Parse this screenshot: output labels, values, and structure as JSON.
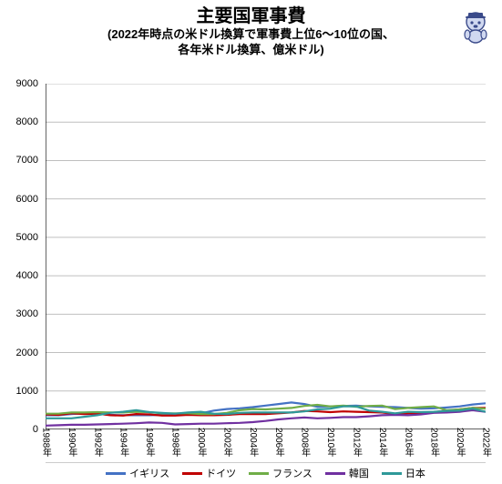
{
  "chart": {
    "type": "line",
    "title": "主要国軍事費",
    "subtitle_line1": "(2022年時点の米ドル換算で軍事費上位6～10位の国、",
    "subtitle_line2": "各年米ドル換算、億米ドル)",
    "title_fontsize": 20,
    "subtitle_fontsize": 13,
    "background_color": "#ffffff",
    "grid_color": "#bfbfbf",
    "axis_color": "#000000",
    "tick_fontsize": 11,
    "ylim": [
      0,
      9000
    ],
    "ytick_step": 1000,
    "yticks": [
      0,
      1000,
      2000,
      3000,
      4000,
      5000,
      6000,
      7000,
      8000,
      9000
    ],
    "xlabels": [
      "1988年",
      "1990年",
      "1992年",
      "1994年",
      "1996年",
      "1998年",
      "2000年",
      "2002年",
      "2004年",
      "2006年",
      "2008年",
      "2010年",
      "2012年",
      "2014年",
      "2016年",
      "2018年",
      "2020年",
      "2022年"
    ],
    "x_count": 35,
    "line_width": 2.2,
    "series": [
      {
        "name": "イギリス",
        "color": "#4472c4",
        "values": [
          370,
          370,
          400,
          420,
          410,
          380,
          370,
          370,
          370,
          380,
          380,
          400,
          420,
          490,
          530,
          550,
          580,
          620,
          660,
          700,
          660,
          590,
          600,
          610,
          620,
          600,
          590,
          580,
          560,
          540,
          550,
          570,
          600,
          650,
          680
        ]
      },
      {
        "name": "ドイツ",
        "color": "#c00000",
        "values": [
          390,
          380,
          420,
          400,
          410,
          370,
          360,
          400,
          390,
          360,
          360,
          380,
          370,
          370,
          380,
          400,
          400,
          400,
          420,
          440,
          480,
          470,
          450,
          470,
          460,
          450,
          440,
          400,
          420,
          430,
          450,
          490,
          520,
          560,
          560
        ]
      },
      {
        "name": "フランス",
        "color": "#70ad47",
        "values": [
          410,
          410,
          440,
          440,
          450,
          440,
          440,
          460,
          450,
          420,
          420,
          420,
          400,
          400,
          430,
          500,
          530,
          520,
          540,
          560,
          610,
          640,
          600,
          620,
          590,
          610,
          620,
          530,
          560,
          580,
          600,
          500,
          520,
          560,
          540
        ]
      },
      {
        "name": "韓国",
        "color": "#7030a0",
        "values": [
          100,
          110,
          120,
          120,
          130,
          140,
          150,
          160,
          180,
          170,
          130,
          140,
          150,
          150,
          160,
          170,
          190,
          220,
          260,
          290,
          310,
          290,
          300,
          320,
          320,
          340,
          370,
          380,
          370,
          390,
          430,
          440,
          460,
          500,
          460
        ]
      },
      {
        "name": "日本",
        "color": "#2e9999",
        "values": [
          290,
          290,
          290,
          330,
          370,
          430,
          460,
          500,
          450,
          430,
          410,
          440,
          460,
          410,
          400,
          430,
          440,
          440,
          440,
          440,
          470,
          520,
          540,
          600,
          600,
          490,
          460,
          420,
          460,
          450,
          460,
          480,
          490,
          540,
          460
        ]
      }
    ],
    "legend_labels": [
      "イギリス",
      "ドイツ",
      "フランス",
      "韓国",
      "日本"
    ],
    "legend_colors": [
      "#4472c4",
      "#c00000",
      "#70ad47",
      "#7030a0",
      "#2e9999"
    ],
    "corner_icon_colors": {
      "body": "#d0d8f0",
      "outline": "#3a4a8a",
      "accent": "#ffffff"
    }
  }
}
